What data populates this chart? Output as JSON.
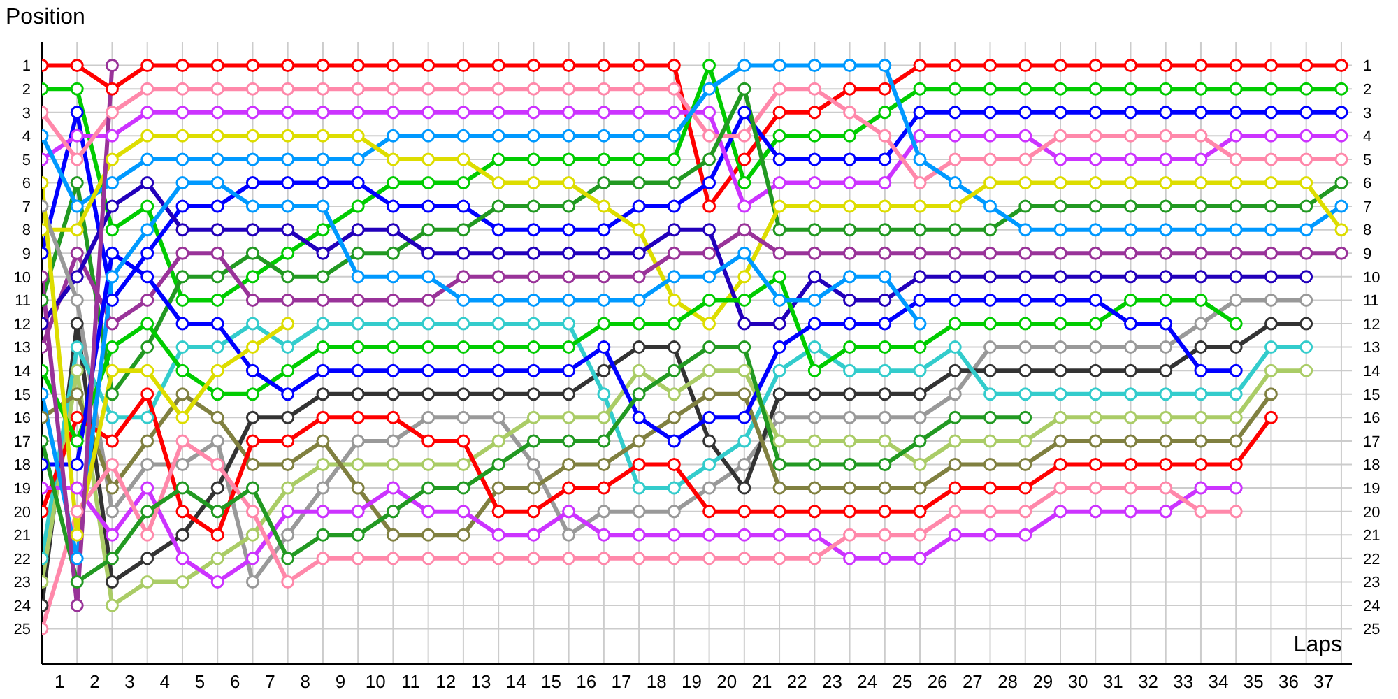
{
  "chart_data": {
    "type": "line",
    "xlabel": "Laps",
    "ylabel": "Position",
    "marker": "circle",
    "line_style": "solid",
    "grid": true,
    "x": [
      0,
      1,
      2,
      3,
      4,
      5,
      6,
      7,
      8,
      9,
      10,
      11,
      12,
      13,
      14,
      15,
      16,
      17,
      18,
      19,
      20,
      21,
      22,
      23,
      24,
      25,
      26,
      27,
      28,
      29,
      30,
      31,
      32,
      33,
      34,
      35,
      36,
      37
    ],
    "xlim": [
      0,
      37.3
    ],
    "xticks": [
      {
        "value": 0,
        "label": null
      },
      {
        "value": 0.5,
        "label": "1"
      },
      {
        "value": 1,
        "label": null
      },
      {
        "value": 1.5,
        "label": "2"
      },
      {
        "value": 2,
        "label": null
      },
      {
        "value": 2.5,
        "label": "3"
      },
      {
        "value": 3,
        "label": null
      },
      {
        "value": 3.5,
        "label": "4"
      },
      {
        "value": 4,
        "label": null
      },
      {
        "value": 4.5,
        "label": "5"
      },
      {
        "value": 5,
        "label": null
      },
      {
        "value": 5.5,
        "label": "6"
      },
      {
        "value": 6,
        "label": null
      },
      {
        "value": 6.5,
        "label": "7"
      },
      {
        "value": 7,
        "label": null
      },
      {
        "value": 7.5,
        "label": "8"
      },
      {
        "value": 8,
        "label": null
      },
      {
        "value": 8.5,
        "label": "9"
      },
      {
        "value": 9,
        "label": null
      },
      {
        "value": 9.5,
        "label": "10"
      },
      {
        "value": 10,
        "label": null
      },
      {
        "value": 10.5,
        "label": "11"
      },
      {
        "value": 11,
        "label": null
      },
      {
        "value": 11.5,
        "label": "12"
      },
      {
        "value": 12,
        "label": null
      },
      {
        "value": 12.5,
        "label": "13"
      },
      {
        "value": 13,
        "label": null
      },
      {
        "value": 13.5,
        "label": "14"
      },
      {
        "value": 14,
        "label": null
      },
      {
        "value": 14.5,
        "label": "15"
      },
      {
        "value": 15,
        "label": null
      },
      {
        "value": 15.5,
        "label": "16"
      },
      {
        "value": 16,
        "label": null
      },
      {
        "value": 16.5,
        "label": "17"
      },
      {
        "value": 17,
        "label": null
      },
      {
        "value": 17.5,
        "label": "18"
      },
      {
        "value": 18,
        "label": null
      },
      {
        "value": 18.5,
        "label": "19"
      },
      {
        "value": 19,
        "label": null
      },
      {
        "value": 19.5,
        "label": "20"
      },
      {
        "value": 20,
        "label": null
      },
      {
        "value": 20.5,
        "label": "21"
      },
      {
        "value": 21,
        "label": null
      },
      {
        "value": 21.5,
        "label": "22"
      },
      {
        "value": 22,
        "label": null
      },
      {
        "value": 22.5,
        "label": "23"
      },
      {
        "value": 23,
        "label": null
      },
      {
        "value": 23.5,
        "label": "24"
      },
      {
        "value": 24,
        "label": null
      },
      {
        "value": 24.5,
        "label": "25"
      },
      {
        "value": 25,
        "label": null
      },
      {
        "value": 25.5,
        "label": "26"
      },
      {
        "value": 26,
        "label": null
      },
      {
        "value": 26.5,
        "label": "27"
      },
      {
        "value": 27,
        "label": null
      },
      {
        "value": 27.5,
        "label": "28"
      },
      {
        "value": 28,
        "label": null
      },
      {
        "value": 28.5,
        "label": "29"
      },
      {
        "value": 29,
        "label": null
      },
      {
        "value": 29.5,
        "label": "30"
      },
      {
        "value": 30,
        "label": null
      },
      {
        "value": 30.5,
        "label": "31"
      },
      {
        "value": 31,
        "label": null
      },
      {
        "value": 31.5,
        "label": "32"
      },
      {
        "value": 32,
        "label": null
      },
      {
        "value": 32.5,
        "label": "33"
      },
      {
        "value": 33,
        "label": null
      },
      {
        "value": 33.5,
        "label": "34"
      },
      {
        "value": 34,
        "label": null
      },
      {
        "value": 34.5,
        "label": "35"
      },
      {
        "value": 35,
        "label": null
      },
      {
        "value": 35.5,
        "label": "36"
      },
      {
        "value": 36,
        "label": null
      },
      {
        "value": 36.5,
        "label": "37"
      },
      {
        "value": 37,
        "label": null
      }
    ],
    "ylim": [
      26.5,
      0
    ],
    "yticks": [
      1,
      2,
      3,
      4,
      5,
      6,
      7,
      8,
      9,
      10,
      11,
      12,
      13,
      14,
      15,
      16,
      17,
      18,
      19,
      20,
      21,
      22,
      23,
      24,
      25
    ],
    "y2lim": [
      26.5,
      0
    ],
    "y2ticks": [
      1,
      2,
      3,
      4,
      5,
      6,
      7,
      8,
      9,
      10,
      11,
      12,
      13,
      14,
      15,
      16,
      17,
      18,
      19,
      20,
      21,
      22,
      23,
      24,
      25
    ],
    "series": [
      {
        "color": "#ff0000",
        "values": [
          1,
          1,
          2,
          1,
          1,
          1,
          1,
          1,
          1,
          1,
          1,
          1,
          1,
          1,
          1,
          1,
          1,
          1,
          1,
          7,
          5,
          3,
          3,
          2,
          2,
          1,
          1,
          1,
          1,
          1,
          1,
          1,
          1,
          1,
          1,
          1,
          1,
          1
        ]
      },
      {
        "color": "#00cc00",
        "values": [
          2,
          2,
          8,
          7,
          11,
          11,
          10,
          9,
          8,
          7,
          6,
          6,
          6,
          5,
          5,
          5,
          5,
          5,
          5,
          1,
          6,
          4,
          4,
          4,
          3,
          2,
          2,
          2,
          2,
          2,
          2,
          2,
          2,
          2,
          2,
          2,
          2,
          2
        ]
      },
      {
        "color": "#0000ff",
        "values": [
          9,
          3,
          11,
          9,
          7,
          7,
          6,
          6,
          6,
          6,
          7,
          7,
          7,
          8,
          8,
          8,
          8,
          7,
          7,
          6,
          3,
          5,
          5,
          5,
          5,
          3,
          3,
          3,
          3,
          3,
          3,
          3,
          3,
          3,
          3,
          3,
          3,
          3
        ]
      },
      {
        "color": "#cc33ff",
        "values": [
          5,
          4,
          4,
          3,
          3,
          3,
          3,
          3,
          3,
          3,
          3,
          3,
          3,
          3,
          3,
          3,
          3,
          3,
          3,
          3,
          7,
          6,
          6,
          6,
          6,
          4,
          4,
          4,
          4,
          5,
          5,
          5,
          5,
          5,
          4,
          4,
          4,
          4
        ]
      },
      {
        "color": "#ff88aa",
        "values": [
          3,
          5,
          3,
          2,
          2,
          2,
          2,
          2,
          2,
          2,
          2,
          2,
          2,
          2,
          2,
          2,
          2,
          2,
          2,
          4,
          4,
          2,
          2,
          3,
          4,
          6,
          5,
          5,
          5,
          4,
          4,
          4,
          4,
          4,
          5,
          5,
          5,
          5
        ]
      },
      {
        "color": "#229922",
        "values": [
          11,
          6,
          15,
          13,
          10,
          10,
          9,
          10,
          10,
          9,
          9,
          8,
          8,
          7,
          7,
          7,
          6,
          6,
          6,
          5,
          2,
          8,
          8,
          8,
          8,
          8,
          8,
          8,
          7,
          7,
          7,
          7,
          7,
          7,
          7,
          7,
          7,
          6
        ]
      },
      {
        "color": "#0099ff",
        "values": [
          4,
          7,
          6,
          5,
          5,
          5,
          5,
          5,
          5,
          5,
          4,
          4,
          4,
          4,
          4,
          4,
          4,
          4,
          4,
          2,
          1,
          1,
          1,
          1,
          1,
          5,
          6,
          7,
          8,
          8,
          8,
          8,
          8,
          8,
          8,
          8,
          8,
          7
        ]
      },
      {
        "color": "#dddd00",
        "values": [
          8,
          8,
          5,
          4,
          4,
          4,
          4,
          4,
          4,
          4,
          5,
          5,
          5,
          6,
          6,
          6,
          7,
          8,
          11,
          12,
          10,
          7,
          7,
          7,
          7,
          7,
          7,
          6,
          6,
          6,
          6,
          6,
          6,
          6,
          6,
          6,
          6,
          8
        ]
      },
      {
        "color": "#993399",
        "values": [
          13,
          9,
          12,
          11,
          9,
          9,
          11,
          11,
          11,
          11,
          11,
          11,
          10,
          10,
          10,
          10,
          10,
          10,
          9,
          9,
          8,
          9,
          9,
          9,
          9,
          9,
          9,
          9,
          9,
          9,
          9,
          9,
          9,
          9,
          9,
          9,
          9,
          9
        ]
      },
      {
        "color": "#2200bb",
        "values": [
          12,
          10,
          7,
          6,
          8,
          8,
          8,
          8,
          9,
          8,
          8,
          9,
          9,
          9,
          9,
          9,
          9,
          9,
          8,
          8,
          12,
          12,
          10,
          11,
          11,
          10,
          10,
          10,
          10,
          10,
          10,
          10,
          10,
          10,
          10,
          10,
          10,
          null
        ]
      },
      {
        "color": "#999999",
        "values": [
          7,
          11,
          20,
          18,
          18,
          17,
          23,
          21,
          19,
          17,
          17,
          16,
          16,
          16,
          18,
          21,
          20,
          20,
          20,
          19,
          18,
          16,
          16,
          16,
          16,
          16,
          15,
          13,
          13,
          13,
          13,
          13,
          13,
          12,
          11,
          11,
          11,
          null
        ]
      },
      {
        "color": "#333333",
        "values": [
          24,
          12,
          23,
          22,
          21,
          19,
          16,
          16,
          15,
          15,
          15,
          15,
          15,
          15,
          15,
          15,
          14,
          13,
          13,
          17,
          19,
          15,
          15,
          15,
          15,
          15,
          14,
          14,
          14,
          14,
          14,
          14,
          14,
          13,
          13,
          12,
          12,
          null
        ]
      },
      {
        "color": "#33cccc",
        "values": [
          22,
          13,
          16,
          16,
          13,
          13,
          12,
          13,
          12,
          12,
          12,
          12,
          12,
          12,
          12,
          12,
          15,
          19,
          19,
          18,
          17,
          14,
          13,
          14,
          14,
          14,
          13,
          15,
          15,
          15,
          15,
          15,
          15,
          15,
          15,
          13,
          13,
          null
        ]
      },
      {
        "color": "#aacc66",
        "values": [
          23,
          14,
          24,
          23,
          23,
          22,
          21,
          19,
          18,
          18,
          18,
          18,
          18,
          17,
          16,
          16,
          16,
          14,
          15,
          14,
          14,
          17,
          17,
          17,
          17,
          18,
          17,
          17,
          17,
          16,
          16,
          16,
          16,
          16,
          16,
          14,
          14,
          null
        ]
      },
      {
        "color": "#808040",
        "values": [
          16,
          15,
          19,
          17,
          15,
          16,
          18,
          18,
          17,
          19,
          21,
          21,
          21,
          19,
          19,
          18,
          18,
          17,
          16,
          15,
          15,
          19,
          19,
          19,
          19,
          19,
          18,
          18,
          18,
          17,
          17,
          17,
          17,
          17,
          17,
          15,
          null,
          null
        ]
      },
      {
        "color": "#ff0000",
        "values": [
          20,
          16,
          17,
          15,
          20,
          21,
          17,
          17,
          16,
          16,
          16,
          17,
          17,
          20,
          20,
          19,
          19,
          18,
          18,
          20,
          20,
          20,
          20,
          20,
          20,
          20,
          19,
          19,
          19,
          18,
          18,
          18,
          18,
          18,
          18,
          16,
          null,
          null
        ]
      },
      {
        "color": "#00cc00",
        "values": [
          14,
          17,
          13,
          12,
          14,
          15,
          15,
          14,
          13,
          13,
          13,
          13,
          13,
          13,
          13,
          13,
          12,
          12,
          12,
          11,
          11,
          10,
          14,
          13,
          13,
          13,
          12,
          12,
          12,
          12,
          12,
          11,
          11,
          11,
          12,
          null,
          null,
          null
        ]
      },
      {
        "color": "#0000ff",
        "values": [
          18,
          18,
          9,
          10,
          12,
          12,
          14,
          15,
          14,
          14,
          14,
          14,
          14,
          14,
          14,
          14,
          13,
          16,
          17,
          16,
          16,
          13,
          12,
          12,
          12,
          11,
          11,
          11,
          11,
          11,
          11,
          12,
          12,
          14,
          14,
          null,
          null,
          null
        ]
      },
      {
        "color": "#cc33ff",
        "values": [
          19,
          19,
          21,
          19,
          22,
          23,
          22,
          20,
          20,
          20,
          19,
          20,
          20,
          21,
          21,
          20,
          21,
          21,
          21,
          21,
          21,
          21,
          21,
          22,
          22,
          22,
          21,
          21,
          21,
          20,
          20,
          20,
          20,
          19,
          19,
          null,
          null,
          null
        ]
      },
      {
        "color": "#ff88aa",
        "values": [
          25,
          20,
          18,
          21,
          17,
          18,
          20,
          23,
          22,
          22,
          22,
          22,
          22,
          22,
          22,
          22,
          22,
          22,
          22,
          22,
          22,
          22,
          22,
          21,
          21,
          21,
          20,
          20,
          20,
          19,
          19,
          19,
          19,
          20,
          20,
          null,
          null,
          null
        ]
      },
      {
        "color": "#229922",
        "values": [
          17,
          23,
          22,
          20,
          19,
          20,
          19,
          22,
          21,
          21,
          20,
          19,
          19,
          18,
          17,
          17,
          17,
          15,
          14,
          13,
          13,
          18,
          18,
          18,
          18,
          17,
          16,
          16,
          16,
          null,
          null,
          null,
          null,
          null,
          null,
          null,
          null,
          null
        ]
      },
      {
        "color": "#0099ff",
        "values": [
          15,
          22,
          10,
          8,
          6,
          6,
          7,
          7,
          7,
          10,
          10,
          10,
          11,
          11,
          11,
          11,
          11,
          11,
          10,
          10,
          9,
          11,
          11,
          10,
          10,
          12,
          null,
          null,
          null,
          null,
          null,
          null,
          null,
          null,
          null,
          null,
          null,
          null
        ]
      },
      {
        "color": "#dddd00",
        "values": [
          6,
          21,
          14,
          14,
          16,
          14,
          13,
          12,
          null,
          null,
          null,
          null,
          null,
          null,
          null,
          null,
          null,
          null,
          null,
          null,
          null,
          null,
          null,
          null,
          null,
          null,
          null,
          null,
          null,
          null,
          null,
          null,
          null,
          null,
          null,
          null,
          null,
          null
        ]
      },
      {
        "color": "#993399",
        "values": [
          10,
          24,
          1,
          null,
          null,
          null,
          null,
          null,
          null,
          null,
          null,
          null,
          null,
          null,
          null,
          null,
          null,
          null,
          null,
          null,
          null,
          null,
          null,
          null,
          null,
          null,
          null,
          null,
          null,
          null,
          null,
          null,
          null,
          null,
          null,
          null,
          null,
          null
        ]
      }
    ]
  }
}
